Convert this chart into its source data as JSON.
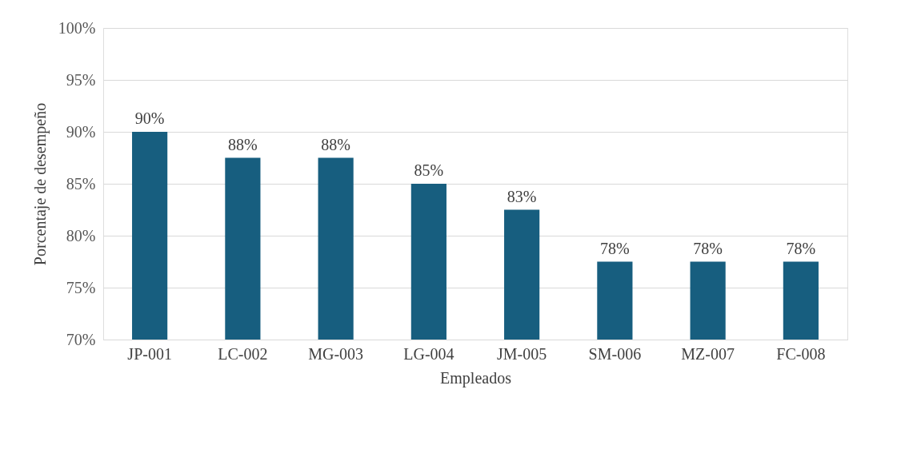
{
  "chart_data": {
    "type": "bar",
    "xlabel": "Empleados",
    "ylabel": "Porcentaje de desempeño",
    "categories": [
      "JP-001",
      "LC-002",
      "MG-003",
      "LG-004",
      "JM-005",
      "SM-006",
      "MZ-007",
      "FC-008"
    ],
    "values": [
      90,
      87.5,
      87.5,
      85,
      82.5,
      77.5,
      77.5,
      77.5
    ],
    "value_labels": [
      "90%",
      "88%",
      "88%",
      "85%",
      "83%",
      "78%",
      "78%",
      "78%"
    ],
    "color": "#175e7f",
    "ylim": [
      70,
      100
    ],
    "yticks": [
      {
        "value": 70,
        "label": "70%"
      },
      {
        "value": 75,
        "label": "75%"
      },
      {
        "value": 80,
        "label": "80%"
      },
      {
        "value": 85,
        "label": "85%"
      },
      {
        "value": 90,
        "label": "90%"
      },
      {
        "value": 95,
        "label": "95%"
      },
      {
        "value": 100,
        "label": "100%"
      }
    ],
    "grid": "y"
  }
}
